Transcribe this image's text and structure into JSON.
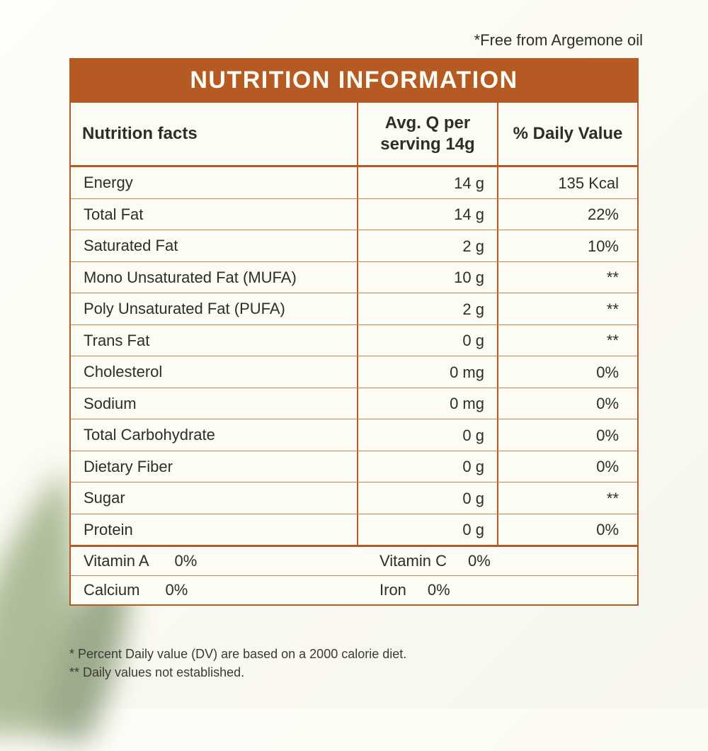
{
  "colors": {
    "border": "#b45a22",
    "row_border": "#c78348",
    "panel_bg": "#fdfcf4",
    "title_text": "#fefcf3",
    "body_text": "#2e2e29"
  },
  "top_note": "*Free from Argemone oil",
  "title": "NUTRITION INFORMATION",
  "header": {
    "col1": "Nutrition facts",
    "col2": "Avg. Q per serving 14g",
    "col3": "% Daily Value"
  },
  "rows": [
    {
      "name": "Energy",
      "qty": "14 g",
      "dv": "135 Kcal"
    },
    {
      "name": "Total Fat",
      "qty": "14 g",
      "dv": "22%"
    },
    {
      "name": "Saturated Fat",
      "qty": "2 g",
      "dv": "10%"
    },
    {
      "name": "Mono Unsaturated Fat (MUFA)",
      "qty": "10 g",
      "dv": "**"
    },
    {
      "name": "Poly Unsaturated Fat (PUFA)",
      "qty": "2 g",
      "dv": "**"
    },
    {
      "name": "Trans Fat",
      "qty": "0 g",
      "dv": "**"
    },
    {
      "name": "Cholesterol",
      "qty": "0 mg",
      "dv": "0%"
    },
    {
      "name": "Sodium",
      "qty": "0 mg",
      "dv": "0%"
    },
    {
      "name": "Total Carbohydrate",
      "qty": "0 g",
      "dv": "0%"
    },
    {
      "name": "Dietary Fiber",
      "qty": "0 g",
      "dv": "0%"
    },
    {
      "name": "Sugar",
      "qty": "0 g",
      "dv": "**"
    },
    {
      "name": "Protein",
      "qty": "0 g",
      "dv": "0%"
    }
  ],
  "footer": [
    {
      "left_name": "Vitamin A",
      "left_val": "0%",
      "right_name": "Vitamin C",
      "right_val": "0%"
    },
    {
      "left_name": "Calcium",
      "left_val": "0%",
      "right_name": "Iron",
      "right_val": "0%"
    }
  ],
  "footnotes": {
    "line1": "* Percent Daily value (DV) are based on a 2000 calorie diet.",
    "line2": "** Daily values not established."
  }
}
